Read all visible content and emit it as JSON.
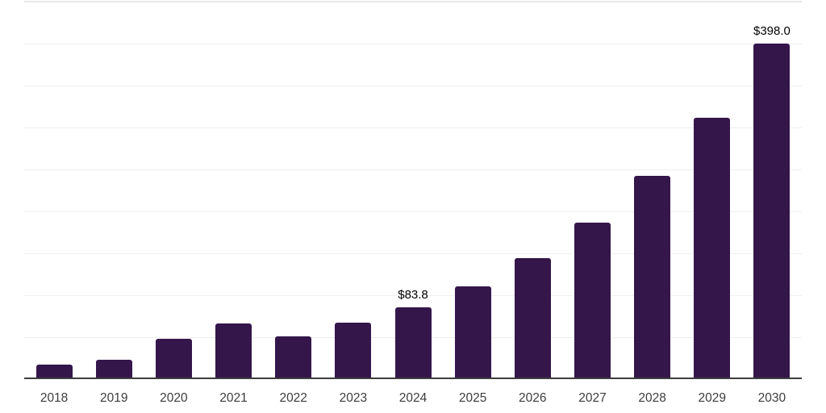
{
  "chart_data": {
    "type": "bar",
    "title": "",
    "xlabel": "",
    "ylabel": "",
    "categories": [
      "2018",
      "2019",
      "2020",
      "2021",
      "2022",
      "2023",
      "2024",
      "2025",
      "2026",
      "2027",
      "2028",
      "2029",
      "2030"
    ],
    "values": [
      15,
      21,
      46,
      64,
      49,
      65,
      83.8,
      109,
      142,
      185,
      240,
      310,
      398
    ],
    "data_labels": [
      null,
      null,
      null,
      null,
      null,
      null,
      "$83.8",
      null,
      null,
      null,
      null,
      null,
      "$398.0"
    ],
    "ylim": [
      0,
      450
    ],
    "grid_step": 50,
    "grid": true,
    "legend": false,
    "currency_prefix": "$"
  },
  "colors": {
    "bar": "#34164b",
    "axis_line": "#3d3d3d",
    "gridline": "#efefef",
    "top_gridline": "#e7e7e7",
    "tick_label": "#3d3d3d",
    "data_label": "#000000",
    "background": "#ffffff"
  }
}
